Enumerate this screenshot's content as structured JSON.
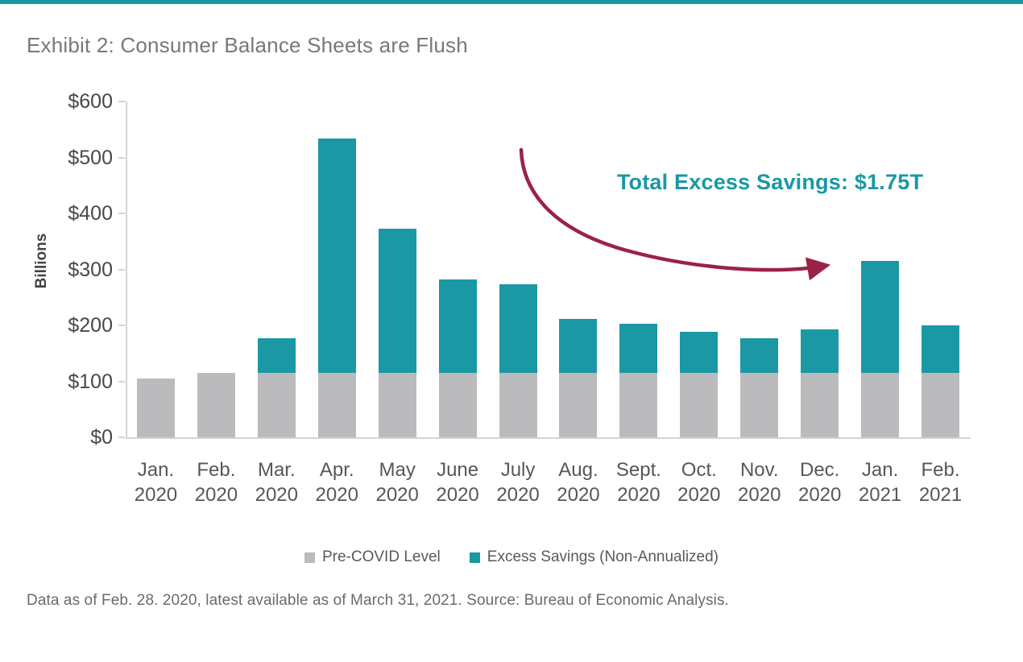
{
  "page": {
    "title": "Exhibit 2: Consumer Balance Sheets are Flush",
    "footnote": "Data as of Feb. 28. 2020, latest available as of March 31, 2021. Source: Bureau of Economic Analysis.",
    "brand_rule_color": "#1A98A3"
  },
  "colors": {
    "teal": "#1A98A3",
    "gray": "#BBBBBD",
    "maroon": "#9B2247",
    "axis": "#D2D3D4"
  },
  "chart_data": {
    "type": "bar",
    "stacked": true,
    "title": "Exhibit 2: Consumer Balance Sheets are Flush",
    "xlabel": "",
    "ylabel": "Billions",
    "ylim": [
      0,
      600
    ],
    "ytick_step": 100,
    "ytick_labels": [
      "$0",
      "$100",
      "$200",
      "$300",
      "$400",
      "$500",
      "$600"
    ],
    "grid": false,
    "legend_position": "bottom",
    "categories": [
      "Jan. 2020",
      "Feb. 2020",
      "Mar. 2020",
      "Apr. 2020",
      "May 2020",
      "June 2020",
      "July 2020",
      "Aug. 2020",
      "Sept. 2020",
      "Oct. 2020",
      "Nov. 2020",
      "Dec. 2020",
      "Jan. 2021",
      "Feb. 2021"
    ],
    "category_line1": [
      "Jan.",
      "Feb.",
      "Mar.",
      "Apr.",
      "May",
      "June",
      "July",
      "Aug.",
      "Sept.",
      "Oct.",
      "Nov.",
      "Dec.",
      "Jan.",
      "Feb."
    ],
    "category_line2": [
      "2020",
      "2020",
      "2020",
      "2020",
      "2020",
      "2020",
      "2020",
      "2020",
      "2020",
      "2020",
      "2020",
      "2020",
      "2021",
      "2021"
    ],
    "series": [
      {
        "name": "Pre-COVID Level",
        "color": "#BBBBBD",
        "values": [
          105,
          115,
          115,
          115,
          115,
          115,
          115,
          115,
          115,
          115,
          115,
          115,
          115,
          115
        ]
      },
      {
        "name": "Excess Savings (Non-Annualized)",
        "color": "#1A98A3",
        "values": [
          0,
          0,
          62,
          419,
          258,
          167,
          158,
          97,
          88,
          74,
          62,
          78,
          200,
          85
        ]
      }
    ],
    "stack_totals": [
      105,
      115,
      177,
      534,
      373,
      282,
      273,
      212,
      203,
      189,
      177,
      193,
      315,
      200
    ],
    "annotation": {
      "text": "Total Excess Savings: $1.75T",
      "color": "#1A98A3"
    }
  }
}
